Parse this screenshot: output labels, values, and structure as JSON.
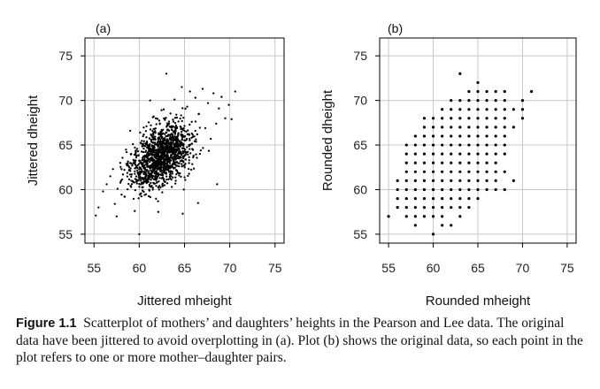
{
  "chart_data": [
    {
      "type": "scatter",
      "panel_label": "(a)",
      "xlabel": "Jittered mheight",
      "ylabel": "Jittered dheight",
      "xlim": [
        54,
        76
      ],
      "ylim": [
        54,
        77
      ],
      "xticks": [
        55,
        60,
        65,
        70,
        75
      ],
      "yticks": [
        55,
        60,
        65,
        70,
        75
      ],
      "grid": true,
      "approx_point_count": 1375,
      "points": [
        [
          55.2,
          57.1
        ],
        [
          55.5,
          58.0
        ],
        [
          56.0,
          59.8
        ],
        [
          56.4,
          60.6
        ],
        [
          56.8,
          61.5
        ],
        [
          57.1,
          62.3
        ],
        [
          57.3,
          58.4
        ],
        [
          57.6,
          60.1
        ],
        [
          57.9,
          63.0
        ],
        [
          58.2,
          61.7
        ],
        [
          58.4,
          59.2
        ],
        [
          58.6,
          64.2
        ],
        [
          58.9,
          62.5
        ],
        [
          59.1,
          60.3
        ],
        [
          59.3,
          65.1
        ],
        [
          59.5,
          57.6
        ],
        [
          59.7,
          63.8
        ],
        [
          59.9,
          61.1
        ],
        [
          60.0,
          55.0
        ],
        [
          60.1,
          66.4
        ],
        [
          60.3,
          62.0
        ],
        [
          60.5,
          64.6
        ],
        [
          60.6,
          59.4
        ],
        [
          60.8,
          67.1
        ],
        [
          61.0,
          63.3
        ],
        [
          61.1,
          61.2
        ],
        [
          61.3,
          65.6
        ],
        [
          61.5,
          60.0
        ],
        [
          61.6,
          68.2
        ],
        [
          61.8,
          62.8
        ],
        [
          62.0,
          64.1
        ],
        [
          62.1,
          57.5
        ],
        [
          62.3,
          66.3
        ],
        [
          62.4,
          63.0
        ],
        [
          62.6,
          61.4
        ],
        [
          62.7,
          69.0
        ],
        [
          62.9,
          65.2
        ],
        [
          63.0,
          73.0
        ],
        [
          63.1,
          62.2
        ],
        [
          63.3,
          67.4
        ],
        [
          63.4,
          64.5
        ],
        [
          63.6,
          60.3
        ],
        [
          63.7,
          66.0
        ],
        [
          63.9,
          70.1
        ],
        [
          64.0,
          63.6
        ],
        [
          64.1,
          68.4
        ],
        [
          64.3,
          65.5
        ],
        [
          64.4,
          61.6
        ],
        [
          64.6,
          67.0
        ],
        [
          64.7,
          71.5
        ],
        [
          64.9,
          64.2
        ],
        [
          65.0,
          66.6
        ],
        [
          65.1,
          62.9
        ],
        [
          65.3,
          69.3
        ],
        [
          65.5,
          65.0
        ],
        [
          65.6,
          71.0
        ],
        [
          65.8,
          67.6
        ],
        [
          66.0,
          63.8
        ],
        [
          66.2,
          70.3
        ],
        [
          66.4,
          66.2
        ],
        [
          66.6,
          68.5
        ],
        [
          66.8,
          64.4
        ],
        [
          67.0,
          71.3
        ],
        [
          67.3,
          66.9
        ],
        [
          67.6,
          69.7
        ],
        [
          67.9,
          65.7
        ],
        [
          68.2,
          70.8
        ],
        [
          68.5,
          67.4
        ],
        [
          68.8,
          69.1
        ],
        [
          69.1,
          70.4
        ],
        [
          69.5,
          68.0
        ],
        [
          69.9,
          69.5
        ],
        [
          70.2,
          67.9
        ],
        [
          70.6,
          71.0
        ],
        [
          68.6,
          60.6
        ],
        [
          66.5,
          58.5
        ],
        [
          64.8,
          57.3
        ],
        [
          61.2,
          70.0
        ],
        [
          59.0,
          66.6
        ],
        [
          57.5,
          57.0
        ]
      ]
    },
    {
      "type": "scatter",
      "panel_label": "(b)",
      "xlabel": "Rounded mheight",
      "ylabel": "Rounded dheight",
      "xlim": [
        54,
        76
      ],
      "ylim": [
        54,
        77
      ],
      "xticks": [
        55,
        60,
        65,
        70,
        75
      ],
      "yticks": [
        55,
        60,
        65,
        70,
        75
      ],
      "grid": true,
      "points": [
        [
          55,
          57
        ],
        [
          56,
          58
        ],
        [
          56,
          59
        ],
        [
          56,
          60
        ],
        [
          56,
          61
        ],
        [
          57,
          57
        ],
        [
          57,
          58
        ],
        [
          57,
          59
        ],
        [
          57,
          60
        ],
        [
          57,
          61
        ],
        [
          57,
          62
        ],
        [
          57,
          63
        ],
        [
          57,
          64
        ],
        [
          57,
          65
        ],
        [
          58,
          56
        ],
        [
          58,
          57
        ],
        [
          58,
          58
        ],
        [
          58,
          59
        ],
        [
          58,
          60
        ],
        [
          58,
          61
        ],
        [
          58,
          62
        ],
        [
          58,
          63
        ],
        [
          58,
          64
        ],
        [
          58,
          65
        ],
        [
          58,
          66
        ],
        [
          59,
          57
        ],
        [
          59,
          58
        ],
        [
          59,
          59
        ],
        [
          59,
          60
        ],
        [
          59,
          61
        ],
        [
          59,
          62
        ],
        [
          59,
          63
        ],
        [
          59,
          64
        ],
        [
          59,
          65
        ],
        [
          59,
          66
        ],
        [
          59,
          67
        ],
        [
          59,
          68
        ],
        [
          60,
          55
        ],
        [
          60,
          57
        ],
        [
          60,
          58
        ],
        [
          60,
          59
        ],
        [
          60,
          60
        ],
        [
          60,
          61
        ],
        [
          60,
          62
        ],
        [
          60,
          63
        ],
        [
          60,
          64
        ],
        [
          60,
          65
        ],
        [
          60,
          66
        ],
        [
          60,
          67
        ],
        [
          60,
          68
        ],
        [
          61,
          56
        ],
        [
          61,
          57
        ],
        [
          61,
          58
        ],
        [
          61,
          59
        ],
        [
          61,
          60
        ],
        [
          61,
          61
        ],
        [
          61,
          62
        ],
        [
          61,
          63
        ],
        [
          61,
          64
        ],
        [
          61,
          65
        ],
        [
          61,
          66
        ],
        [
          61,
          67
        ],
        [
          61,
          68
        ],
        [
          61,
          69
        ],
        [
          62,
          56
        ],
        [
          62,
          58
        ],
        [
          62,
          59
        ],
        [
          62,
          60
        ],
        [
          62,
          61
        ],
        [
          62,
          62
        ],
        [
          62,
          63
        ],
        [
          62,
          64
        ],
        [
          62,
          65
        ],
        [
          62,
          66
        ],
        [
          62,
          67
        ],
        [
          62,
          68
        ],
        [
          62,
          69
        ],
        [
          62,
          70
        ],
        [
          63,
          57
        ],
        [
          63,
          58
        ],
        [
          63,
          59
        ],
        [
          63,
          60
        ],
        [
          63,
          61
        ],
        [
          63,
          62
        ],
        [
          63,
          63
        ],
        [
          63,
          64
        ],
        [
          63,
          65
        ],
        [
          63,
          66
        ],
        [
          63,
          67
        ],
        [
          63,
          68
        ],
        [
          63,
          69
        ],
        [
          63,
          70
        ],
        [
          63,
          73
        ],
        [
          64,
          58
        ],
        [
          64,
          59
        ],
        [
          64,
          60
        ],
        [
          64,
          61
        ],
        [
          64,
          62
        ],
        [
          64,
          63
        ],
        [
          64,
          64
        ],
        [
          64,
          65
        ],
        [
          64,
          66
        ],
        [
          64,
          67
        ],
        [
          64,
          68
        ],
        [
          64,
          69
        ],
        [
          64,
          70
        ],
        [
          64,
          71
        ],
        [
          65,
          59
        ],
        [
          65,
          60
        ],
        [
          65,
          61
        ],
        [
          65,
          62
        ],
        [
          65,
          63
        ],
        [
          65,
          64
        ],
        [
          65,
          65
        ],
        [
          65,
          66
        ],
        [
          65,
          67
        ],
        [
          65,
          68
        ],
        [
          65,
          69
        ],
        [
          65,
          70
        ],
        [
          65,
          71
        ],
        [
          65,
          72
        ],
        [
          66,
          60
        ],
        [
          66,
          61
        ],
        [
          66,
          62
        ],
        [
          66,
          63
        ],
        [
          66,
          64
        ],
        [
          66,
          65
        ],
        [
          66,
          66
        ],
        [
          66,
          67
        ],
        [
          66,
          68
        ],
        [
          66,
          69
        ],
        [
          66,
          70
        ],
        [
          66,
          71
        ],
        [
          67,
          60
        ],
        [
          67,
          61
        ],
        [
          67,
          62
        ],
        [
          67,
          63
        ],
        [
          67,
          64
        ],
        [
          67,
          65
        ],
        [
          67,
          66
        ],
        [
          67,
          67
        ],
        [
          67,
          68
        ],
        [
          67,
          69
        ],
        [
          67,
          70
        ],
        [
          67,
          71
        ],
        [
          68,
          60
        ],
        [
          68,
          62
        ],
        [
          68,
          64
        ],
        [
          68,
          65
        ],
        [
          68,
          66
        ],
        [
          68,
          67
        ],
        [
          68,
          68
        ],
        [
          68,
          69
        ],
        [
          68,
          70
        ],
        [
          68,
          71
        ],
        [
          69,
          61
        ],
        [
          69,
          67
        ],
        [
          69,
          69
        ],
        [
          70,
          68
        ],
        [
          70,
          69
        ],
        [
          70,
          70
        ],
        [
          71,
          71
        ]
      ]
    }
  ],
  "caption": {
    "label": "Figure 1.1",
    "text": "Scatterplot of mothers’ and daughters’ heights in the Pearson and Lee data. The original data have been jittered to avoid overplotting in (a). Plot (b) shows the original data, so each point in the plot refers to one or more mother–daughter pairs."
  }
}
